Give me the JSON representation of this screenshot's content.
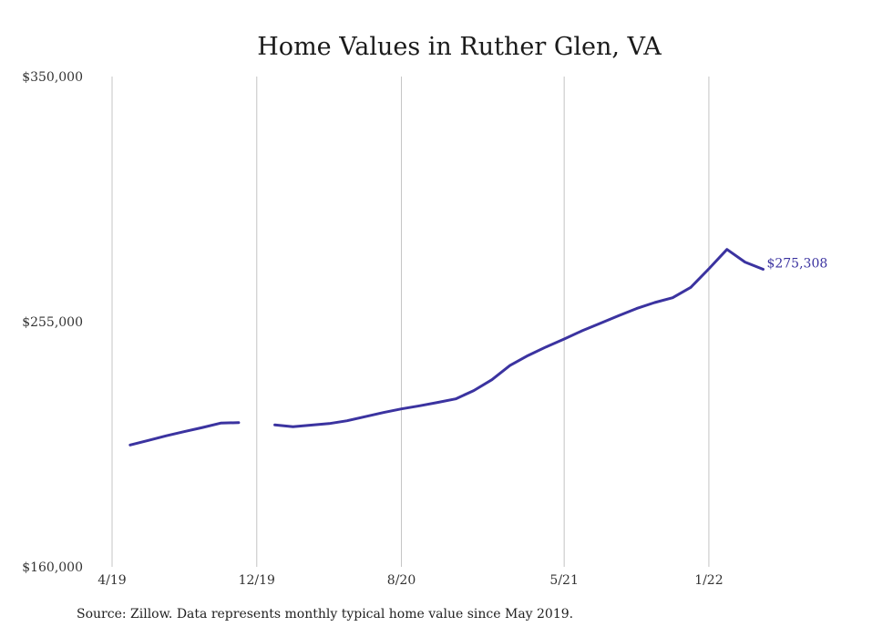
{
  "chart_data": {
    "type": "line",
    "title": "Home Values in Ruther Glen, VA",
    "xlabel": "",
    "ylabel": "",
    "ylim": [
      160000,
      350000
    ],
    "y_ticks": [
      "$350,000",
      "$255,000",
      "$160,000"
    ],
    "y_tick_values": [
      350000,
      255000,
      160000
    ],
    "x_ticks": [
      "4/19",
      "12/19",
      "8/20",
      "5/21",
      "1/22"
    ],
    "x_tick_dates": [
      "2019-04",
      "2019-12",
      "2020-08",
      "2021-05",
      "2022-01"
    ],
    "x_range": [
      "2019-04",
      "2022-07"
    ],
    "grid": "vertical",
    "line_color": "#3b33a0",
    "end_label": "$275,308",
    "series": [
      {
        "segments": [
          [
            {
              "x": "2019-05",
              "y": 207200
            },
            {
              "x": "2019-06",
              "y": 209000
            },
            {
              "x": "2019-07",
              "y": 210800
            },
            {
              "x": "2019-08",
              "y": 212400
            },
            {
              "x": "2019-09",
              "y": 214000
            },
            {
              "x": "2019-10",
              "y": 215700
            },
            {
              "x": "2019-11",
              "y": 215900
            }
          ],
          [
            {
              "x": "2020-01",
              "y": 215000
            },
            {
              "x": "2020-02",
              "y": 214300
            },
            {
              "x": "2020-03",
              "y": 214900
            },
            {
              "x": "2020-04",
              "y": 215500
            },
            {
              "x": "2020-05",
              "y": 216600
            },
            {
              "x": "2020-06",
              "y": 218200
            },
            {
              "x": "2020-07",
              "y": 219800
            },
            {
              "x": "2020-08",
              "y": 221200
            },
            {
              "x": "2020-09",
              "y": 222400
            },
            {
              "x": "2020-10",
              "y": 223700
            },
            {
              "x": "2020-11",
              "y": 225100
            },
            {
              "x": "2020-12",
              "y": 228300
            },
            {
              "x": "2021-01",
              "y": 232500
            },
            {
              "x": "2021-02",
              "y": 238000
            },
            {
              "x": "2021-03",
              "y": 241900
            },
            {
              "x": "2021-04",
              "y": 245200
            },
            {
              "x": "2021-05",
              "y": 248300
            },
            {
              "x": "2021-06",
              "y": 251500
            },
            {
              "x": "2021-07",
              "y": 254400
            },
            {
              "x": "2021-08",
              "y": 257300
            },
            {
              "x": "2021-09",
              "y": 260100
            },
            {
              "x": "2021-10",
              "y": 262400
            },
            {
              "x": "2021-11",
              "y": 264300
            },
            {
              "x": "2021-12",
              "y": 268300
            },
            {
              "x": "2022-01",
              "y": 275500
            },
            {
              "x": "2022-02",
              "y": 283000
            },
            {
              "x": "2022-03",
              "y": 278100
            },
            {
              "x": "2022-04",
              "y": 275308
            }
          ]
        ]
      }
    ]
  },
  "source_note": "Source: Zillow. Data represents monthly typical home value since May 2019."
}
